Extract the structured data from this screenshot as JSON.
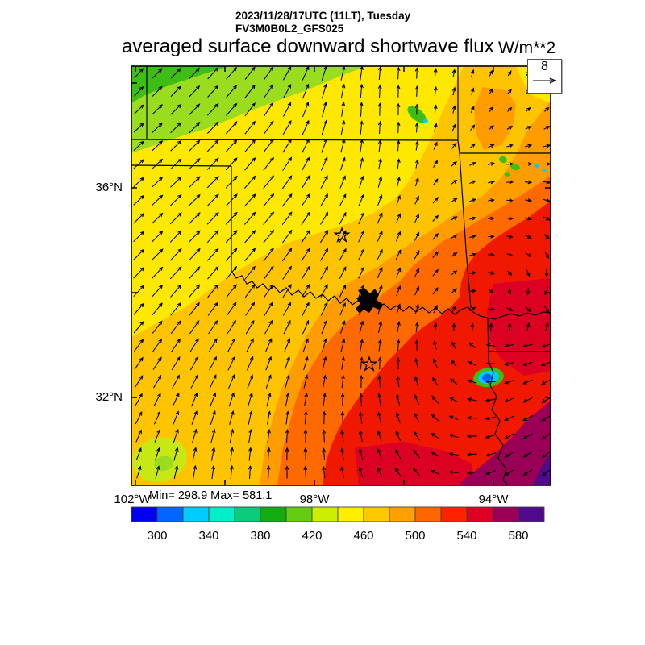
{
  "header": {
    "datetime": "2023/11/28/17UTC (11LT), Tuesday",
    "model": "FV3M0B0L2_GFS025"
  },
  "title": {
    "main": "averaged surface downward shortwave flux",
    "units": "W/m**2"
  },
  "stats": {
    "text": "Min= 298.9 Max= 581.1",
    "min": 298.9,
    "max": 581.1
  },
  "axes": {
    "lat_labels": [
      "36°N",
      "32°N"
    ],
    "lon_labels": [
      "102°W",
      "98°W",
      "94°W"
    ]
  },
  "vector_ref": {
    "value": "8"
  },
  "colorbar": {
    "tick_labels": [
      "300",
      "340",
      "380",
      "420",
      "460",
      "500",
      "540",
      "580"
    ],
    "range_min": 280,
    "range_max": 600,
    "step": 20,
    "colors": [
      "#0000EE",
      "#0066FF",
      "#00CCFF",
      "#00EEC8",
      "#0ACC7A",
      "#12AD12",
      "#66CC11",
      "#CCEE00",
      "#FFEE00",
      "#FFC800",
      "#FFA000",
      "#FF6600",
      "#FF2200",
      "#DD0022",
      "#990055",
      "#500A8C"
    ]
  },
  "map_colors": {
    "green": "#3CBE14",
    "ygreen": "#9ADC1E",
    "chartreuse": "#C8E816",
    "yellow": "#FFE800",
    "amber": "#FFC400",
    "orange": "#FF9D00",
    "dark_orange": "#FF6A00",
    "red": "#F01800",
    "deep_red": "#DC0022",
    "maroon": "#990055",
    "violet": "#500A8C",
    "cyan": "#00CCFF",
    "blue": "#0066FF",
    "outline": "#000000"
  },
  "chart_data": {
    "type": "heatmap",
    "title": "averaged surface downward shortwave flux",
    "units": "W/m**2",
    "valid_time": "2023/11/28/17UTC (11LT), Tuesday",
    "model": "FV3M0B0L2_GFS025",
    "field_min": 298.9,
    "field_max": 581.1,
    "color_levels": [
      300,
      340,
      380,
      420,
      460,
      500,
      540,
      580
    ],
    "lat_gridline_labels": [
      "36°N",
      "32°N"
    ],
    "lon_gridline_labels": [
      "102°W",
      "98°W",
      "94°W"
    ],
    "legend_position": "bottom",
    "field_pattern": "flux increases from ~400 W/m**2 (green, northwest) to ~590 W/m**2 (purple, southeast corner)",
    "wind": {
      "reference_speed": 8,
      "grid_angles_deg": [
        [
          48,
          46,
          48,
          55,
          70,
          82,
          88,
          80,
          60,
          50
        ],
        [
          44,
          45,
          48,
          56,
          74,
          88,
          90,
          75,
          45,
          40
        ],
        [
          42,
          44,
          46,
          52,
          64,
          80,
          85,
          40,
          5,
          0
        ],
        [
          43,
          45,
          46,
          50,
          58,
          66,
          70,
          25,
          0,
          -20
        ],
        [
          45,
          46,
          48,
          52,
          58,
          63,
          66,
          30,
          -10,
          -60
        ],
        [
          47,
          50,
          52,
          56,
          62,
          68,
          70,
          40,
          -80,
          -130
        ],
        [
          52,
          56,
          60,
          66,
          72,
          80,
          88,
          120,
          190,
          200
        ],
        [
          58,
          64,
          68,
          74,
          80,
          92,
          105,
          150,
          200,
          210
        ],
        [
          66,
          72,
          78,
          84,
          92,
          102,
          118,
          170,
          208,
          214
        ],
        [
          74,
          80,
          86,
          90,
          96,
          110,
          130,
          180,
          212,
          218
        ]
      ],
      "grid_rel_length": [
        [
          15,
          17,
          19,
          19,
          18,
          17,
          14,
          9,
          7,
          7
        ],
        [
          16,
          18,
          20,
          20,
          19,
          17,
          13,
          9,
          7,
          7
        ],
        [
          16,
          18,
          20,
          20,
          18,
          15,
          11,
          8,
          8,
          9
        ],
        [
          17,
          19,
          20,
          20,
          18,
          15,
          11,
          8,
          7,
          8
        ],
        [
          18,
          20,
          20,
          20,
          18,
          15,
          12,
          8,
          7,
          9
        ],
        [
          18,
          20,
          20,
          19,
          18,
          15,
          12,
          8,
          7,
          10
        ],
        [
          18,
          19,
          19,
          18,
          17,
          15,
          13,
          9,
          11,
          12
        ],
        [
          17,
          18,
          18,
          17,
          16,
          15,
          13,
          11,
          12,
          13
        ],
        [
          16,
          17,
          17,
          16,
          15,
          14,
          13,
          11,
          13,
          13
        ],
        [
          15,
          16,
          16,
          15,
          14,
          13,
          12,
          11,
          13,
          13
        ]
      ]
    }
  }
}
